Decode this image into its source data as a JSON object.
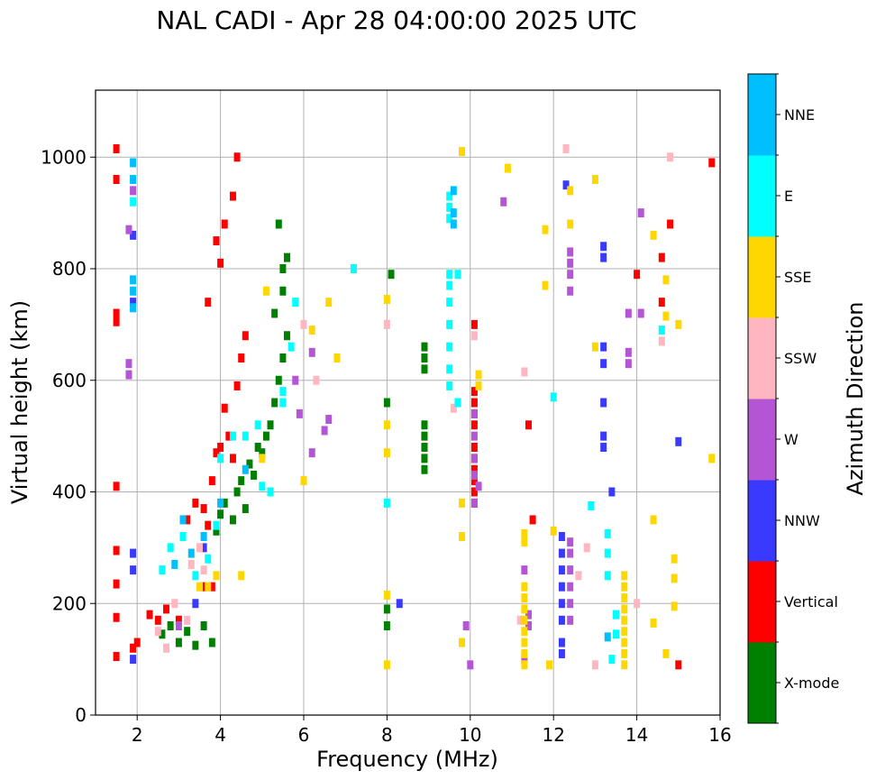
{
  "chart_data": {
    "type": "scatter",
    "title": "NAL CADI - Apr 28 04:00:00 2025 UTC",
    "xlabel": "Frequency (MHz)",
    "ylabel": "Virtual height (km)",
    "xlim": [
      1.0,
      16.0
    ],
    "ylim": [
      0,
      1120
    ],
    "xticks": [
      2,
      4,
      6,
      8,
      10,
      12,
      14,
      16
    ],
    "yticks": [
      0,
      200,
      400,
      600,
      800,
      1000
    ],
    "grid": true,
    "colorbar": {
      "label": "Azimuth Direction",
      "categories": [
        {
          "name": "X-mode",
          "color": "#008000"
        },
        {
          "name": "Vertical",
          "color": "#ff0000"
        },
        {
          "name": "NNW",
          "color": "#3a3aff"
        },
        {
          "name": "W",
          "color": "#b455d6"
        },
        {
          "name": "SSW",
          "color": "#ffb6c1"
        },
        {
          "name": "SSE",
          "color": "#ffd700"
        },
        {
          "name": "E",
          "color": "#00ffff"
        },
        {
          "name": "NNE",
          "color": "#00bfff"
        }
      ]
    },
    "series": [
      {
        "name": "X-mode",
        "points": [
          [
            2.6,
            145
          ],
          [
            2.8,
            160
          ],
          [
            3.0,
            130
          ],
          [
            3.2,
            150
          ],
          [
            3.4,
            125
          ],
          [
            3.6,
            160
          ],
          [
            3.8,
            130
          ],
          [
            3.9,
            330
          ],
          [
            4.0,
            360
          ],
          [
            4.1,
            380
          ],
          [
            4.3,
            350
          ],
          [
            4.4,
            400
          ],
          [
            4.5,
            420
          ],
          [
            4.6,
            370
          ],
          [
            4.7,
            450
          ],
          [
            4.8,
            430
          ],
          [
            4.9,
            480
          ],
          [
            5.0,
            470
          ],
          [
            5.1,
            500
          ],
          [
            5.2,
            520
          ],
          [
            5.3,
            560
          ],
          [
            5.4,
            600
          ],
          [
            5.5,
            640
          ],
          [
            5.6,
            680
          ],
          [
            5.3,
            720
          ],
          [
            5.5,
            760
          ],
          [
            5.6,
            820
          ],
          [
            5.5,
            800
          ],
          [
            5.4,
            880
          ],
          [
            8.0,
            560
          ],
          [
            8.0,
            190
          ],
          [
            8.0,
            160
          ],
          [
            8.1,
            790
          ],
          [
            8.9,
            440
          ],
          [
            8.9,
            460
          ],
          [
            8.9,
            480
          ],
          [
            8.9,
            500
          ],
          [
            8.9,
            520
          ],
          [
            8.9,
            620
          ],
          [
            8.9,
            640
          ],
          [
            8.9,
            660
          ]
        ]
      },
      {
        "name": "Vertical",
        "points": [
          [
            1.5,
            1015
          ],
          [
            1.5,
            960
          ],
          [
            1.5,
            720
          ],
          [
            1.5,
            705
          ],
          [
            1.5,
            410
          ],
          [
            1.5,
            295
          ],
          [
            1.5,
            235
          ],
          [
            1.5,
            175
          ],
          [
            1.5,
            105
          ],
          [
            1.9,
            120
          ],
          [
            2.0,
            130
          ],
          [
            2.3,
            180
          ],
          [
            2.5,
            170
          ],
          [
            2.7,
            190
          ],
          [
            3.0,
            170
          ],
          [
            3.2,
            350
          ],
          [
            3.4,
            380
          ],
          [
            3.6,
            370
          ],
          [
            3.7,
            340
          ],
          [
            3.8,
            420
          ],
          [
            3.9,
            470
          ],
          [
            4.0,
            480
          ],
          [
            4.1,
            550
          ],
          [
            4.2,
            500
          ],
          [
            4.3,
            460
          ],
          [
            4.4,
            590
          ],
          [
            4.5,
            640
          ],
          [
            4.6,
            680
          ],
          [
            4.4,
            1000
          ],
          [
            4.3,
            930
          ],
          [
            4.1,
            880
          ],
          [
            4.0,
            810
          ],
          [
            3.9,
            850
          ],
          [
            3.7,
            740
          ],
          [
            3.8,
            230
          ],
          [
            3.6,
            230
          ],
          [
            10.1,
            380
          ],
          [
            10.1,
            400
          ],
          [
            10.1,
            420
          ],
          [
            10.1,
            440
          ],
          [
            10.1,
            460
          ],
          [
            10.1,
            480
          ],
          [
            10.1,
            520
          ],
          [
            10.1,
            540
          ],
          [
            10.1,
            560
          ],
          [
            10.1,
            580
          ],
          [
            10.1,
            700
          ],
          [
            11.4,
            160
          ],
          [
            11.4,
            520
          ],
          [
            11.5,
            350
          ],
          [
            14.0,
            790
          ],
          [
            14.6,
            820
          ],
          [
            14.6,
            740
          ],
          [
            14.8,
            880
          ],
          [
            15.0,
            90
          ],
          [
            15.8,
            990
          ]
        ]
      },
      {
        "name": "NNW",
        "points": [
          [
            1.9,
            100
          ],
          [
            1.9,
            260
          ],
          [
            1.9,
            290
          ],
          [
            1.9,
            740
          ],
          [
            1.9,
            860
          ],
          [
            3.4,
            200
          ],
          [
            3.6,
            300
          ],
          [
            8.3,
            200
          ],
          [
            12.2,
            110
          ],
          [
            12.2,
            130
          ],
          [
            12.2,
            170
          ],
          [
            12.2,
            200
          ],
          [
            12.2,
            230
          ],
          [
            12.2,
            260
          ],
          [
            12.2,
            290
          ],
          [
            12.2,
            320
          ],
          [
            12.3,
            950
          ],
          [
            13.2,
            480
          ],
          [
            13.2,
            500
          ],
          [
            13.2,
            560
          ],
          [
            13.2,
            630
          ],
          [
            13.2,
            660
          ],
          [
            13.2,
            820
          ],
          [
            13.2,
            840
          ],
          [
            13.4,
            400
          ],
          [
            15.0,
            490
          ]
        ]
      },
      {
        "name": "W",
        "points": [
          [
            1.8,
            870
          ],
          [
            1.8,
            630
          ],
          [
            1.8,
            610
          ],
          [
            1.9,
            940
          ],
          [
            3.0,
            160
          ],
          [
            5.8,
            600
          ],
          [
            5.9,
            540
          ],
          [
            6.2,
            650
          ],
          [
            6.5,
            510
          ],
          [
            6.6,
            530
          ],
          [
            6.2,
            470
          ],
          [
            9.9,
            160
          ],
          [
            10.0,
            90
          ],
          [
            10.1,
            430
          ],
          [
            10.1,
            460
          ],
          [
            10.1,
            500
          ],
          [
            10.1,
            540
          ],
          [
            10.1,
            380
          ],
          [
            10.2,
            410
          ],
          [
            10.8,
            920
          ],
          [
            11.3,
            260
          ],
          [
            11.3,
            100
          ],
          [
            11.4,
            160
          ],
          [
            11.4,
            180
          ],
          [
            12.4,
            170
          ],
          [
            12.4,
            200
          ],
          [
            12.4,
            230
          ],
          [
            12.4,
            260
          ],
          [
            12.4,
            290
          ],
          [
            12.4,
            310
          ],
          [
            12.4,
            760
          ],
          [
            12.4,
            790
          ],
          [
            12.4,
            810
          ],
          [
            12.4,
            830
          ],
          [
            13.8,
            630
          ],
          [
            13.8,
            650
          ],
          [
            13.8,
            720
          ],
          [
            14.1,
            900
          ],
          [
            14.1,
            720
          ]
        ]
      },
      {
        "name": "SSW",
        "points": [
          [
            2.5,
            150
          ],
          [
            2.7,
            120
          ],
          [
            2.9,
            200
          ],
          [
            3.2,
            170
          ],
          [
            3.3,
            270
          ],
          [
            3.5,
            300
          ],
          [
            3.6,
            260
          ],
          [
            6.0,
            700
          ],
          [
            6.3,
            600
          ],
          [
            8.0,
            700
          ],
          [
            9.6,
            550
          ],
          [
            10.1,
            680
          ],
          [
            11.2,
            170
          ],
          [
            11.3,
            615
          ],
          [
            12.3,
            1015
          ],
          [
            12.6,
            250
          ],
          [
            12.8,
            300
          ],
          [
            13.0,
            90
          ],
          [
            14.0,
            200
          ],
          [
            14.6,
            670
          ],
          [
            14.8,
            1000
          ]
        ]
      },
      {
        "name": "SSE",
        "points": [
          [
            3.5,
            230
          ],
          [
            3.7,
            230
          ],
          [
            3.9,
            250
          ],
          [
            4.5,
            250
          ],
          [
            5.0,
            460
          ],
          [
            5.1,
            760
          ],
          [
            6.0,
            420
          ],
          [
            6.2,
            690
          ],
          [
            6.6,
            740
          ],
          [
            6.8,
            640
          ],
          [
            8.0,
            90
          ],
          [
            8.0,
            215
          ],
          [
            8.0,
            470
          ],
          [
            8.0,
            520
          ],
          [
            8.0,
            745
          ],
          [
            9.8,
            130
          ],
          [
            9.8,
            320
          ],
          [
            9.8,
            380
          ],
          [
            9.8,
            1010
          ],
          [
            10.2,
            590
          ],
          [
            10.2,
            610
          ],
          [
            10.9,
            980
          ],
          [
            11.3,
            90
          ],
          [
            11.3,
            110
          ],
          [
            11.3,
            130
          ],
          [
            11.3,
            150
          ],
          [
            11.3,
            170
          ],
          [
            11.3,
            190
          ],
          [
            11.3,
            210
          ],
          [
            11.3,
            230
          ],
          [
            11.3,
            310
          ],
          [
            11.3,
            325
          ],
          [
            11.9,
            90
          ],
          [
            11.8,
            770
          ],
          [
            11.8,
            870
          ],
          [
            12.0,
            330
          ],
          [
            12.4,
            880
          ],
          [
            12.4,
            940
          ],
          [
            13.0,
            960
          ],
          [
            13.0,
            660
          ],
          [
            13.7,
            90
          ],
          [
            13.7,
            110
          ],
          [
            13.7,
            130
          ],
          [
            13.7,
            150
          ],
          [
            13.7,
            170
          ],
          [
            13.7,
            190
          ],
          [
            13.7,
            210
          ],
          [
            13.7,
            230
          ],
          [
            13.7,
            250
          ],
          [
            14.4,
            165
          ],
          [
            14.4,
            350
          ],
          [
            14.4,
            860
          ],
          [
            14.7,
            110
          ],
          [
            14.7,
            715
          ],
          [
            14.7,
            780
          ],
          [
            14.9,
            195
          ],
          [
            14.9,
            245
          ],
          [
            14.9,
            280
          ],
          [
            15.0,
            700
          ],
          [
            15.8,
            460
          ]
        ]
      },
      {
        "name": "E",
        "points": [
          [
            1.9,
            920
          ],
          [
            2.6,
            260
          ],
          [
            2.8,
            300
          ],
          [
            3.1,
            320
          ],
          [
            3.4,
            250
          ],
          [
            3.7,
            280
          ],
          [
            3.9,
            340
          ],
          [
            4.0,
            460
          ],
          [
            4.3,
            500
          ],
          [
            4.6,
            500
          ],
          [
            4.9,
            520
          ],
          [
            5.0,
            410
          ],
          [
            5.2,
            400
          ],
          [
            5.5,
            560
          ],
          [
            5.7,
            660
          ],
          [
            5.5,
            580
          ],
          [
            5.8,
            740
          ],
          [
            7.2,
            800
          ],
          [
            8.0,
            380
          ],
          [
            9.5,
            590
          ],
          [
            9.5,
            620
          ],
          [
            9.5,
            660
          ],
          [
            9.5,
            700
          ],
          [
            9.5,
            740
          ],
          [
            9.5,
            770
          ],
          [
            9.5,
            790
          ],
          [
            9.5,
            890
          ],
          [
            9.5,
            910
          ],
          [
            9.5,
            930
          ],
          [
            9.7,
            560
          ],
          [
            9.7,
            790
          ],
          [
            12.0,
            570
          ],
          [
            12.9,
            375
          ],
          [
            13.3,
            250
          ],
          [
            13.3,
            290
          ],
          [
            13.3,
            325
          ],
          [
            13.4,
            100
          ],
          [
            13.5,
            145
          ],
          [
            13.5,
            180
          ],
          [
            14.6,
            690
          ]
        ]
      },
      {
        "name": "NNE",
        "points": [
          [
            1.9,
            730
          ],
          [
            1.9,
            760
          ],
          [
            1.9,
            780
          ],
          [
            1.9,
            960
          ],
          [
            1.9,
            990
          ],
          [
            2.9,
            270
          ],
          [
            3.3,
            290
          ],
          [
            3.1,
            350
          ],
          [
            3.6,
            320
          ],
          [
            4.0,
            380
          ],
          [
            4.6,
            440
          ],
          [
            9.6,
            880
          ],
          [
            9.6,
            900
          ],
          [
            9.6,
            940
          ],
          [
            13.3,
            140
          ]
        ]
      }
    ]
  }
}
